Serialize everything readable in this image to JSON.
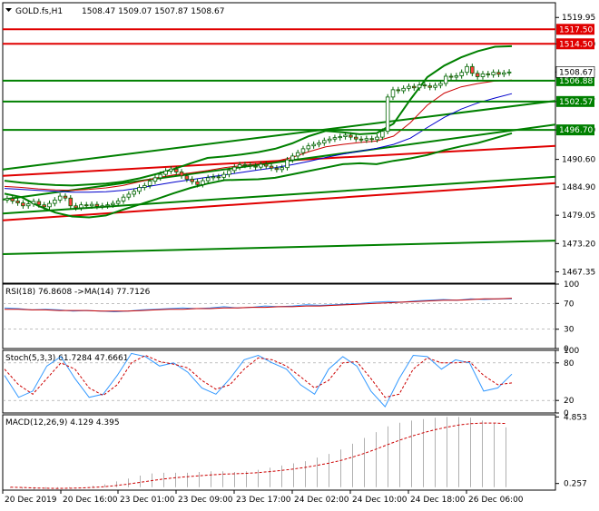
{
  "header": {
    "symbol": "GOLD.fs,H1",
    "ohlc": "1508.47 1509.07 1507.87 1508.67"
  },
  "chart_data": [
    {
      "type": "candlestick",
      "title": "GOLD.fs,H1",
      "ohlc_label": "1508.47 1509.07 1507.87 1508.67",
      "y_ticks": [
        1519.95,
        1514.5,
        1508.67,
        1502.57,
        1496.7,
        1490.6,
        1484.9,
        1479.05,
        1473.2,
        1467.35
      ],
      "ylim": [
        1465.0,
        1523.0
      ],
      "x_labels": [
        "20 Dec 2019",
        "20 Dec 16:00",
        "23 Dec 01:00",
        "23 Dec 09:00",
        "23 Dec 17:00",
        "24 Dec 02:00",
        "24 Dec 10:00",
        "24 Dec 18:00",
        "26 Dec 06:00"
      ],
      "horizontal_levels": [
        {
          "value": 1517.5,
          "label": "1517.50",
          "color": "#e00000"
        },
        {
          "value": 1514.5,
          "label": "1514.50",
          "color": "#e00000"
        },
        {
          "value": 1506.88,
          "label": "1506.88",
          "color": "#008000"
        },
        {
          "value": 1502.57,
          "label": "1502.57",
          "color": "#008000"
        },
        {
          "value": 1496.7,
          "label": "1496.70",
          "color": "#008000"
        }
      ],
      "current_price": {
        "value": 1508.67,
        "label": "1508.67"
      },
      "closes": [
        1482.5,
        1482.0,
        1481.6,
        1481.0,
        1481.4,
        1481.9,
        1481.2,
        1480.8,
        1481.5,
        1482.2,
        1483.0,
        1482.6,
        1481.0,
        1480.6,
        1481.2,
        1481.0,
        1481.3,
        1480.9,
        1481.0,
        1481.2,
        1481.5,
        1482.0,
        1482.8,
        1483.4,
        1484.0,
        1484.8,
        1485.2,
        1486.1,
        1486.8,
        1487.5,
        1488.2,
        1488.6,
        1488.0,
        1487.2,
        1486.5,
        1486.0,
        1485.4,
        1486.2,
        1486.8,
        1487.0,
        1486.9,
        1487.5,
        1488.3,
        1489.0,
        1489.5,
        1489.4,
        1489.2,
        1489.0,
        1489.6,
        1489.2,
        1488.8,
        1488.5,
        1488.9,
        1490.5,
        1491.3,
        1492.0,
        1492.8,
        1493.4,
        1493.7,
        1494.0,
        1494.5,
        1494.8,
        1495.1,
        1495.3,
        1495.6,
        1495.2,
        1494.8,
        1494.6,
        1494.9,
        1494.7,
        1495.2,
        1496.4,
        1503.5,
        1505.0,
        1504.8,
        1505.3,
        1505.7,
        1505.4,
        1506.0,
        1505.8,
        1505.5,
        1505.9,
        1506.3,
        1507.8,
        1507.6,
        1507.9,
        1508.6,
        1509.8,
        1508.4,
        1507.7,
        1508.3,
        1508.1,
        1508.6,
        1508.2,
        1508.5,
        1508.67
      ],
      "envelope_upper": [
        1486.2,
        1485.8,
        1485.5,
        1485.3,
        1485.2,
        1485.4,
        1485.6,
        1486.0,
        1486.7,
        1487.6,
        1488.6,
        1489.8,
        1490.9,
        1491.2,
        1491.6,
        1492.1,
        1492.8,
        1493.9,
        1495.4,
        1496.5,
        1496.2,
        1495.8,
        1496.0,
        1498.0,
        1503.0,
        1507.6,
        1510.0,
        1511.7,
        1513.0,
        1513.9,
        1514.0
      ],
      "envelope_lower": [
        1483.5,
        1482.8,
        1481.0,
        1479.6,
        1478.8,
        1478.6,
        1479.0,
        1480.2,
        1481.3,
        1482.4,
        1483.6,
        1484.7,
        1485.6,
        1486.3,
        1486.4,
        1486.5,
        1486.8,
        1487.5,
        1488.2,
        1488.9,
        1489.6,
        1489.8,
        1489.6,
        1490.3,
        1490.8,
        1491.5,
        1492.5,
        1493.3,
        1494.0,
        1495.0,
        1496.0
      ],
      "ma_red": [
        1485.0,
        1484.8,
        1484.5,
        1484.3,
        1484.2,
        1484.4,
        1484.7,
        1485.2,
        1486.0,
        1486.8,
        1487.4,
        1487.8,
        1488.3,
        1488.9,
        1489.3,
        1489.7,
        1490.2,
        1491.0,
        1492.2,
        1493.2,
        1493.7,
        1494.1,
        1494.4,
        1495.4,
        1498.2,
        1501.8,
        1504.3,
        1505.6,
        1506.3,
        1506.8,
        1507.0
      ],
      "ma_blue": [
        1484.6,
        1484.4,
        1484.2,
        1484.0,
        1483.8,
        1483.8,
        1483.9,
        1484.2,
        1484.7,
        1485.3,
        1485.9,
        1486.4,
        1486.9,
        1487.4,
        1487.9,
        1488.4,
        1488.9,
        1489.5,
        1490.2,
        1491.0,
        1491.7,
        1492.3,
        1492.9,
        1493.7,
        1495.0,
        1497.2,
        1499.3,
        1501.0,
        1502.3,
        1503.3,
        1504.2
      ],
      "trendlines": [
        {
          "color": "#e00000",
          "from": 1487.2,
          "to": 1493.4
        },
        {
          "color": "#e00000",
          "from": 1478.0,
          "to": 1485.7
        },
        {
          "color": "#008000",
          "from": 1479.4,
          "to": 1487.0
        },
        {
          "color": "#008000",
          "from": 1471.0,
          "to": 1473.8
        },
        {
          "color": "#008000",
          "from": 1482.3,
          "to": 1497.8
        },
        {
          "color": "#008000",
          "from": 1488.5,
          "to": 1502.7
        }
      ]
    },
    {
      "type": "line",
      "title": "RSI(18) 76.8608 ->MA(14) 77.7126",
      "y_ticks": [
        100,
        70,
        30,
        0
      ],
      "ylim": [
        0,
        100
      ],
      "series": [
        {
          "name": "RSI(18)",
          "color": "#3399ff",
          "values": [
            63,
            62,
            60,
            61,
            60,
            58,
            59,
            58,
            57,
            58,
            60,
            61,
            62,
            63,
            62,
            63,
            65,
            63,
            64,
            66,
            65,
            66,
            68,
            67,
            68,
            69,
            70,
            72,
            73,
            72,
            74,
            75,
            76,
            75,
            77,
            76,
            77,
            77
          ]
        },
        {
          "name": "MA(14)",
          "color": "#cc0000",
          "values": [
            61,
            61,
            60,
            60,
            59,
            59,
            59,
            58,
            58,
            58,
            59,
            60,
            61,
            61,
            62,
            62,
            63,
            63,
            64,
            64,
            65,
            65,
            66,
            66,
            67,
            68,
            69,
            70,
            71,
            72,
            73,
            74,
            75,
            75,
            76,
            77,
            77,
            78
          ]
        }
      ]
    },
    {
      "type": "line",
      "title": "Stoch(5,3,3) 61.7284 47.6661",
      "y_ticks": [
        100,
        80,
        20,
        0
      ],
      "ylim": [
        0,
        100
      ],
      "series": [
        {
          "name": "%K",
          "color": "#3399ff",
          "values": [
            60,
            25,
            35,
            75,
            90,
            55,
            25,
            30,
            60,
            95,
            90,
            75,
            80,
            65,
            40,
            30,
            55,
            85,
            92,
            80,
            70,
            45,
            30,
            70,
            90,
            75,
            35,
            10,
            55,
            92,
            90,
            70,
            85,
            80,
            35,
            40,
            62
          ]
        },
        {
          "name": "%D",
          "color": "#cc0000",
          "values": [
            70,
            45,
            30,
            55,
            80,
            70,
            40,
            28,
            45,
            80,
            92,
            82,
            78,
            72,
            52,
            38,
            45,
            70,
            88,
            85,
            75,
            58,
            40,
            52,
            80,
            82,
            55,
            25,
            30,
            70,
            88,
            80,
            80,
            82,
            60,
            45,
            48
          ]
        }
      ]
    },
    {
      "type": "bar",
      "title": "MACD(12,26,9) 4.129 4.395",
      "y_ticks": [
        4.853,
        0.257
      ],
      "ylim": [
        -0.2,
        5.0
      ],
      "series": [
        {
          "name": "MACD",
          "color": "#b0b0b0",
          "values": [
            -0.05,
            -0.1,
            -0.15,
            -0.12,
            -0.1,
            -0.05,
            0.0,
            0.1,
            0.2,
            0.4,
            0.6,
            0.8,
            0.95,
            1.0,
            1.0,
            1.0,
            1.05,
            1.1,
            1.1,
            1.05,
            1.1,
            1.2,
            1.35,
            1.5,
            1.65,
            1.8,
            2.05,
            2.3,
            2.6,
            3.0,
            3.4,
            3.8,
            4.2,
            4.45,
            4.6,
            4.7,
            4.8,
            4.85,
            4.85,
            4.8,
            4.6,
            4.4,
            4.13
          ]
        },
        {
          "name": "Signal",
          "color": "#cc0000",
          "values": [
            0.0,
            -0.02,
            -0.05,
            -0.07,
            -0.08,
            -0.07,
            -0.05,
            -0.01,
            0.04,
            0.12,
            0.22,
            0.34,
            0.46,
            0.57,
            0.66,
            0.73,
            0.79,
            0.85,
            0.9,
            0.93,
            0.96,
            1.01,
            1.08,
            1.16,
            1.26,
            1.37,
            1.51,
            1.67,
            1.85,
            2.08,
            2.34,
            2.63,
            2.95,
            3.25,
            3.52,
            3.76,
            3.97,
            4.15,
            4.29,
            4.39,
            4.43,
            4.43,
            4.4
          ]
        }
      ]
    }
  ]
}
